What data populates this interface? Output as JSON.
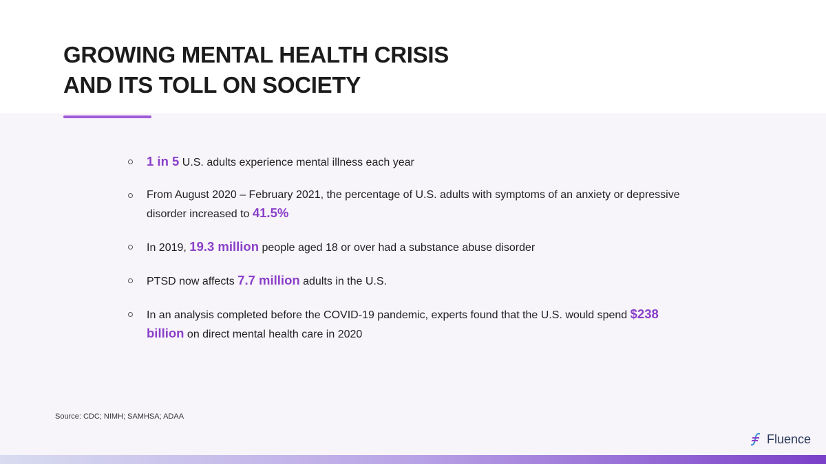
{
  "header": {
    "title_lines": [
      "GROWING MENTAL HEALTH CRISIS",
      "AND ITS TOLL ON SOCIETY"
    ]
  },
  "bullets": [
    [
      {
        "text": "1 in 5",
        "emphasis": true
      },
      {
        "text": " U.S. adults experience mental illness each year",
        "emphasis": false
      }
    ],
    [
      {
        "text": "From August 2020 – February 2021, the percentage of U.S. adults with symptoms of an anxiety or depressive disorder increased to ",
        "emphasis": false
      },
      {
        "text": "41.5%",
        "emphasis": true
      }
    ],
    [
      {
        "text": "In 2019, ",
        "emphasis": false
      },
      {
        "text": "19.3 million",
        "emphasis": true
      },
      {
        "text": " people aged 18 or over had a substance abuse disorder",
        "emphasis": false
      }
    ],
    [
      {
        "text": "PTSD now affects ",
        "emphasis": false
      },
      {
        "text": "7.7 million",
        "emphasis": true
      },
      {
        "text": " adults in the U.S.",
        "emphasis": false
      }
    ],
    [
      {
        "text": "In an analysis completed before the COVID-19 pandemic, experts found that the U.S. would spend ",
        "emphasis": false
      },
      {
        "text": "$238 billion",
        "emphasis": true
      },
      {
        "text": " on direct mental health care in 2020",
        "emphasis": false
      }
    ]
  ],
  "source": "Source:  CDC; NIMH; SAMHSA; ADAA",
  "logo": "Fluence"
}
